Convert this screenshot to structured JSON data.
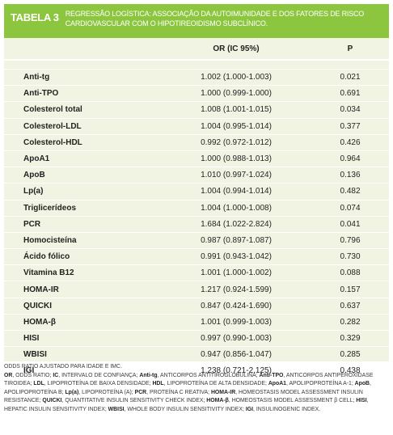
{
  "header": {
    "label": "TABELA 3",
    "title": "REGRESSÃO LOGÍSTICA: ASSOCIAÇÃO DA AUTOIMUNIDADE E DOS FATORES DE RISCO CARDIOVASCULAR COM O HIPOTIREOIDISMO SUBCLÍNICO."
  },
  "table": {
    "columns": [
      "OR (IC 95%)",
      "P"
    ],
    "rows": [
      [
        "Anti-tg",
        "1.002 (1.000-1.003)",
        "0.021"
      ],
      [
        "Anti-TPO",
        "1.000 (0.999-1.000)",
        "0.691"
      ],
      [
        "Colesterol total",
        "1.008 (1.001-1.015)",
        "0.034"
      ],
      [
        "Colesterol-LDL",
        "1.004 (0.995-1.014)",
        "0.377"
      ],
      [
        "Colesterol-HDL",
        "0.992 (0.972-1.012)",
        "0.426"
      ],
      [
        "ApoA1",
        "1.000 (0.988-1.013)",
        "0.964"
      ],
      [
        "ApoB",
        "1.010 (0.997-1.024)",
        "0.136"
      ],
      [
        "Lp(a)",
        "1.004 (0.994-1.014)",
        "0.482"
      ],
      [
        "Triglicerídeos",
        "1.004 (1.000-1.008)",
        "0.074"
      ],
      [
        "PCR",
        "1.684 (1.022-2.824)",
        "0.041"
      ],
      [
        "Homocisteína",
        "0.987 (0.897-1.087)",
        "0.796"
      ],
      [
        "Ácido fólico",
        "0.991 (0.943-1.042)",
        "0.730"
      ],
      [
        "Vitamina B12",
        "1.001 (1.000-1.002)",
        "0.088"
      ],
      [
        "HOMA-IR",
        "1.217 (0.924-1.599)",
        "0.157"
      ],
      [
        "QUICKI",
        "0.847 (0.424-1.690)",
        "0.637"
      ],
      [
        "HOMA-β",
        "1.001 (0.999-1.003)",
        "0.282"
      ],
      [
        "HISI",
        "0.997 (0.990-1.003)",
        "0.329"
      ],
      [
        "WBISI",
        "0.947 (0.856-1.047)",
        "0.285"
      ],
      [
        "IGI",
        "1.238 (0.721-2.125)",
        "0.438"
      ]
    ]
  },
  "footnotes": {
    "note": "ODDS RATIO AJUSTADO PARA IDADE E IMC.",
    "abbreviations": [
      {
        "abbr": "OR",
        "text": ", ODDS RATIO;"
      },
      {
        "abbr": "IC",
        "text": ", INTERVALO DE CONFIANÇA;"
      },
      {
        "abbr": "Anti-tg",
        "text": ", ANTICORPOS ANTITIROGLOBULINA;"
      },
      {
        "abbr": "Anti-TPO",
        "text": ", ANTICORPOS ANTIPEROXIDASE TIROIDEA;"
      },
      {
        "abbr": "LDL",
        "text": ", LIPOPROTEÍNA DE BAIXA DENSIDADE;"
      },
      {
        "abbr": "HDL",
        "text": ", LIPOPROTEÍNA DE ALTA DENSIDADE;"
      },
      {
        "abbr": "ApoA1",
        "text": ", APOLIPOPROTEÍNA A-1;"
      },
      {
        "abbr": "ApoB",
        "text": ", APOLIPOPROTEÍNA B;"
      },
      {
        "abbr": "Lp(a)",
        "text": ", LIPOPROTEÍNA (A);"
      },
      {
        "abbr": "PCR",
        "text": ", PROTEÍNA C REATIVA;"
      },
      {
        "abbr": "HOMA-IR",
        "text": ", HOMEOSTASIS MODEL ASSESSMENT INSULIN RESISTANCE;"
      },
      {
        "abbr": "QUICKI",
        "text": ", QUANTITATIVE INSULIN SENSITIVITY CHECK INDEX;"
      },
      {
        "abbr": "HOMA-β",
        "text": ", HOMEOSTASIS MODEL ASSESSMENT β CELL;"
      },
      {
        "abbr": "HISI",
        "text": ", HEPATIC INSULIN SENSITIVITY INDEX;"
      },
      {
        "abbr": "WBISI",
        "text": ", WHOLE BODY INSULIN SENSITIVITY INDEX;"
      },
      {
        "abbr": "IGI",
        "text": ", INSULINOGENIC INDEX."
      }
    ]
  }
}
